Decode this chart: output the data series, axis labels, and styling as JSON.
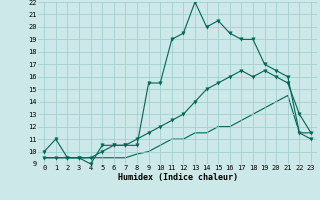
{
  "xlabel": "Humidex (Indice chaleur)",
  "xlim": [
    -0.5,
    23.5
  ],
  "ylim": [
    9,
    22
  ],
  "yticks": [
    9,
    10,
    11,
    12,
    13,
    14,
    15,
    16,
    17,
    18,
    19,
    20,
    21,
    22
  ],
  "xticks": [
    0,
    1,
    2,
    3,
    4,
    5,
    6,
    7,
    8,
    9,
    10,
    11,
    12,
    13,
    14,
    15,
    16,
    17,
    18,
    19,
    20,
    21,
    22,
    23
  ],
  "bg_color": "#cce8e8",
  "grid_color": "#99cccc",
  "line_color": "#006655",
  "line1_y": [
    10.0,
    11.0,
    9.5,
    9.5,
    9.0,
    10.5,
    10.5,
    10.5,
    10.5,
    15.5,
    15.5,
    19.0,
    19.5,
    22.0,
    20.0,
    20.5,
    19.5,
    19.0,
    19.0,
    17.0,
    16.5,
    16.0,
    11.5,
    11.0
  ],
  "line2_y": [
    9.5,
    9.5,
    9.5,
    9.5,
    9.5,
    10.0,
    10.5,
    10.5,
    11.0,
    11.5,
    12.0,
    12.5,
    13.0,
    14.0,
    15.0,
    15.5,
    16.0,
    16.5,
    16.0,
    16.5,
    16.0,
    15.5,
    13.0,
    11.5
  ],
  "line3_y": [
    9.5,
    9.5,
    9.5,
    9.5,
    9.5,
    9.5,
    9.5,
    9.5,
    9.8,
    10.0,
    10.5,
    11.0,
    11.0,
    11.5,
    11.5,
    12.0,
    12.0,
    12.5,
    13.0,
    13.5,
    14.0,
    14.5,
    11.5,
    11.5
  ],
  "marker_size": 2.5,
  "line_width": 0.8,
  "tick_fontsize": 5,
  "xlabel_fontsize": 6
}
